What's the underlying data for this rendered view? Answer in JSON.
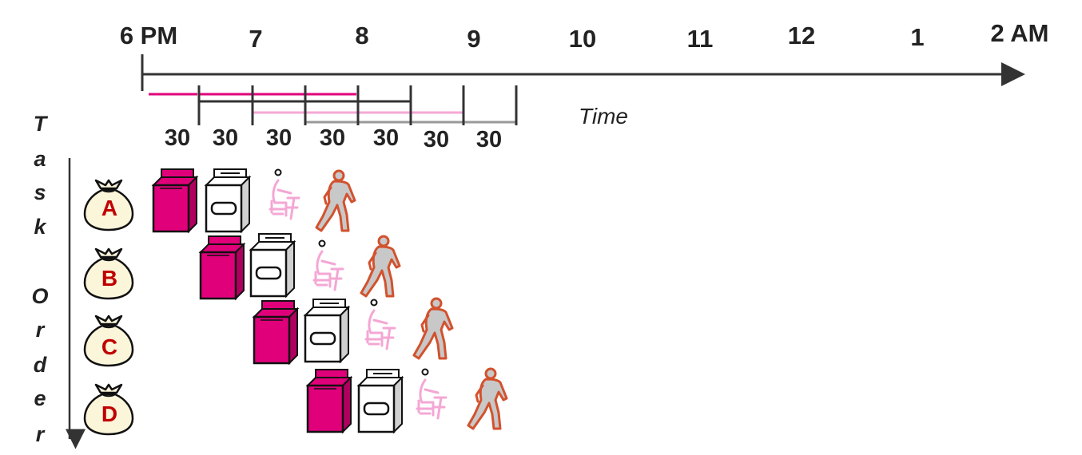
{
  "timeline": {
    "hour_labels": [
      "6 PM",
      "7",
      "8",
      "9",
      "10",
      "11",
      "12",
      "1",
      "2 AM"
    ],
    "duration_labels": [
      "30",
      "30",
      "30",
      "30",
      "30",
      "30",
      "30"
    ],
    "axis_label": "Time"
  },
  "task_order_label": {
    "word1": [
      "T",
      "a",
      "s",
      "k"
    ],
    "word2": [
      "O",
      "r",
      "d",
      "e",
      "r"
    ]
  },
  "tasks": [
    {
      "label": "A",
      "stages": [
        "washer",
        "dryer",
        "folder",
        "storer"
      ]
    },
    {
      "label": "B",
      "stages": [
        "washer",
        "dryer",
        "folder",
        "storer"
      ]
    },
    {
      "label": "C",
      "stages": [
        "washer",
        "dryer",
        "folder",
        "storer"
      ]
    },
    {
      "label": "D",
      "stages": [
        "washer",
        "dryer",
        "folder",
        "storer"
      ]
    }
  ],
  "colors": {
    "washer": "#e0007a",
    "folder": "#f4a7d4",
    "storer_outline": "#d2522e",
    "storer_fill": "#c8c8c8",
    "bag_fill": "#fbf5da",
    "bag_letter": "#c00000",
    "axis": "#333333"
  }
}
